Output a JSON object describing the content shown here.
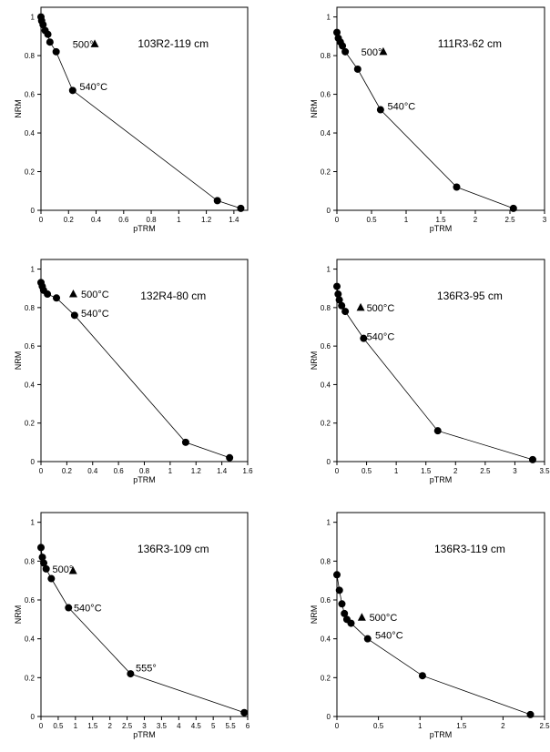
{
  "chart_data": [
    {
      "type": "scatter",
      "title": "103R2-119 cm",
      "xlabel": "pTRM",
      "ylabel": "NRM",
      "xlim": [
        0,
        1.5
      ],
      "ylim": [
        0,
        1.05
      ],
      "xticks": [
        "0",
        "0.2",
        "0.4",
        "0.6",
        "0.8",
        "1",
        "1.2",
        "1.4"
      ],
      "xtick_values": [
        0,
        0.2,
        0.4,
        0.6,
        0.8,
        1,
        1.2,
        1.4
      ],
      "yticks": [
        "0",
        "0.2",
        "0.4",
        "0.6",
        "0.8",
        "1"
      ],
      "ytick_values": [
        0,
        0.2,
        0.4,
        0.6,
        0.8,
        1
      ],
      "points": [
        [
          0,
          1.0
        ],
        [
          0.005,
          0.98
        ],
        [
          0.015,
          0.96
        ],
        [
          0.03,
          0.93
        ],
        [
          0.05,
          0.91
        ],
        [
          0.065,
          0.87
        ],
        [
          0.11,
          0.82
        ],
        [
          0.23,
          0.62
        ],
        [
          1.28,
          0.05
        ],
        [
          1.45,
          0.01
        ]
      ],
      "triangle": [
        0.39,
        0.86
      ],
      "annotations": [
        {
          "text": "500°",
          "x": 0.23,
          "y": 0.86
        },
        {
          "text": "540°C",
          "x": 0.28,
          "y": 0.64
        }
      ]
    },
    {
      "type": "scatter",
      "title": "111R3-62 cm",
      "xlabel": "pTRM",
      "ylabel": "NRM",
      "xlim": [
        0,
        3
      ],
      "ylim": [
        0,
        1.05
      ],
      "xticks": [
        "0",
        "0.5",
        "1",
        "1.5",
        "2",
        "2.5",
        "3"
      ],
      "xtick_values": [
        0,
        0.5,
        1,
        1.5,
        2,
        2.5,
        3
      ],
      "yticks": [
        "0",
        "0.2",
        "0.4",
        "0.6",
        "0.8",
        "1"
      ],
      "ytick_values": [
        0,
        0.2,
        0.4,
        0.6,
        0.8,
        1
      ],
      "points": [
        [
          0,
          0.92
        ],
        [
          0.02,
          0.89
        ],
        [
          0.05,
          0.87
        ],
        [
          0.08,
          0.85
        ],
        [
          0.12,
          0.82
        ],
        [
          0.3,
          0.73
        ],
        [
          0.63,
          0.52
        ],
        [
          1.73,
          0.12
        ],
        [
          2.55,
          0.01
        ]
      ],
      "triangle": [
        0.67,
        0.82
      ],
      "annotations": [
        {
          "text": "500°",
          "x": 0.35,
          "y": 0.82
        },
        {
          "text": "540°C",
          "x": 0.73,
          "y": 0.54
        }
      ]
    },
    {
      "type": "scatter",
      "title": "132R4-80 cm",
      "xlabel": "pTRM",
      "ylabel": "NRM",
      "xlim": [
        0,
        1.6
      ],
      "ylim": [
        0,
        1.05
      ],
      "xticks": [
        "0",
        "0.2",
        "0.4",
        "0.6",
        "0.8",
        "1",
        "1.2",
        "1.4",
        "1.6"
      ],
      "xtick_values": [
        0,
        0.2,
        0.4,
        0.6,
        0.8,
        1,
        1.2,
        1.4,
        1.6
      ],
      "yticks": [
        "0",
        "0.2",
        "0.4",
        "0.6",
        "0.8",
        "1"
      ],
      "ytick_values": [
        0,
        0.2,
        0.4,
        0.6,
        0.8,
        1
      ],
      "points": [
        [
          0,
          0.93
        ],
        [
          0.01,
          0.91
        ],
        [
          0.02,
          0.89
        ],
        [
          0.05,
          0.87
        ],
        [
          0.12,
          0.85
        ],
        [
          0.26,
          0.76
        ],
        [
          1.12,
          0.1
        ],
        [
          1.46,
          0.02
        ]
      ],
      "triangle": [
        0.25,
        0.87
      ],
      "annotations": [
        {
          "text": "500°C",
          "x": 0.31,
          "y": 0.87
        },
        {
          "text": "540°C",
          "x": 0.31,
          "y": 0.77
        }
      ]
    },
    {
      "type": "scatter",
      "title": "136R3-95 cm",
      "xlabel": "pTRM",
      "ylabel": "NRM",
      "xlim": [
        0,
        3.5
      ],
      "ylim": [
        0,
        1.05
      ],
      "xticks": [
        "0",
        "0.5",
        "1",
        "1.5",
        "2",
        "2.5",
        "3",
        "3.5"
      ],
      "xtick_values": [
        0,
        0.5,
        1,
        1.5,
        2,
        2.5,
        3,
        3.5
      ],
      "yticks": [
        "0",
        "0.2",
        "0.4",
        "0.6",
        "0.8",
        "1"
      ],
      "ytick_values": [
        0,
        0.2,
        0.4,
        0.6,
        0.8,
        1
      ],
      "points": [
        [
          0,
          0.91
        ],
        [
          0.02,
          0.87
        ],
        [
          0.04,
          0.84
        ],
        [
          0.08,
          0.81
        ],
        [
          0.14,
          0.78
        ],
        [
          0.45,
          0.64
        ],
        [
          1.7,
          0.16
        ],
        [
          3.3,
          0.01
        ]
      ],
      "triangle": [
        0.4,
        0.8
      ],
      "annotations": [
        {
          "text": "500°C",
          "x": 0.5,
          "y": 0.8
        },
        {
          "text": "540°C",
          "x": 0.5,
          "y": 0.65
        }
      ]
    },
    {
      "type": "scatter",
      "title": "136R3-109 cm",
      "xlabel": "pTRM",
      "ylabel": "NRM",
      "xlim": [
        0,
        6
      ],
      "ylim": [
        0,
        1.05
      ],
      "xticks": [
        "0",
        "0.5",
        "1",
        "1.5",
        "2",
        "2.5",
        "3",
        "3.5",
        "4",
        "4.5",
        "5",
        "5.5",
        "6"
      ],
      "xtick_values": [
        0,
        0.5,
        1,
        1.5,
        2,
        2.5,
        3,
        3.5,
        4,
        4.5,
        5,
        5.5,
        6
      ],
      "yticks": [
        "0",
        "0.2",
        "0.4",
        "0.6",
        "0.8",
        "1"
      ],
      "ytick_values": [
        0,
        0.2,
        0.4,
        0.6,
        0.8,
        1
      ],
      "points": [
        [
          0,
          0.87
        ],
        [
          0.04,
          0.82
        ],
        [
          0.08,
          0.79
        ],
        [
          0.15,
          0.76
        ],
        [
          0.3,
          0.71
        ],
        [
          0.8,
          0.56
        ],
        [
          2.6,
          0.22
        ],
        [
          5.9,
          0.02
        ]
      ],
      "triangle": [
        0.93,
        0.75
      ],
      "annotations": [
        {
          "text": "500°",
          "x": 0.33,
          "y": 0.76
        },
        {
          "text": "540°C",
          "x": 0.95,
          "y": 0.56
        },
        {
          "text": "555°",
          "x": 2.75,
          "y": 0.25
        }
      ]
    },
    {
      "type": "scatter",
      "title": "136R3-119 cm",
      "xlabel": "pTRM",
      "ylabel": "NRM",
      "xlim": [
        0,
        2.5
      ],
      "ylim": [
        0,
        1.05
      ],
      "xticks": [
        "0",
        "0.5",
        "1",
        "1.5",
        "2",
        "2.5"
      ],
      "xtick_values": [
        0,
        0.5,
        1,
        1.5,
        2,
        2.5
      ],
      "yticks": [
        "0",
        "0.2",
        "0.4",
        "0.6",
        "0.8",
        "1"
      ],
      "ytick_values": [
        0,
        0.2,
        0.4,
        0.6,
        0.8,
        1
      ],
      "points": [
        [
          0,
          0.73
        ],
        [
          0.03,
          0.65
        ],
        [
          0.06,
          0.58
        ],
        [
          0.09,
          0.53
        ],
        [
          0.12,
          0.5
        ],
        [
          0.17,
          0.48
        ],
        [
          0.37,
          0.4
        ],
        [
          1.03,
          0.21
        ],
        [
          2.33,
          0.01
        ]
      ],
      "triangle": [
        0.3,
        0.51
      ],
      "annotations": [
        {
          "text": "500°C",
          "x": 0.39,
          "y": 0.51
        },
        {
          "text": "540°C",
          "x": 0.46,
          "y": 0.42
        }
      ]
    }
  ]
}
